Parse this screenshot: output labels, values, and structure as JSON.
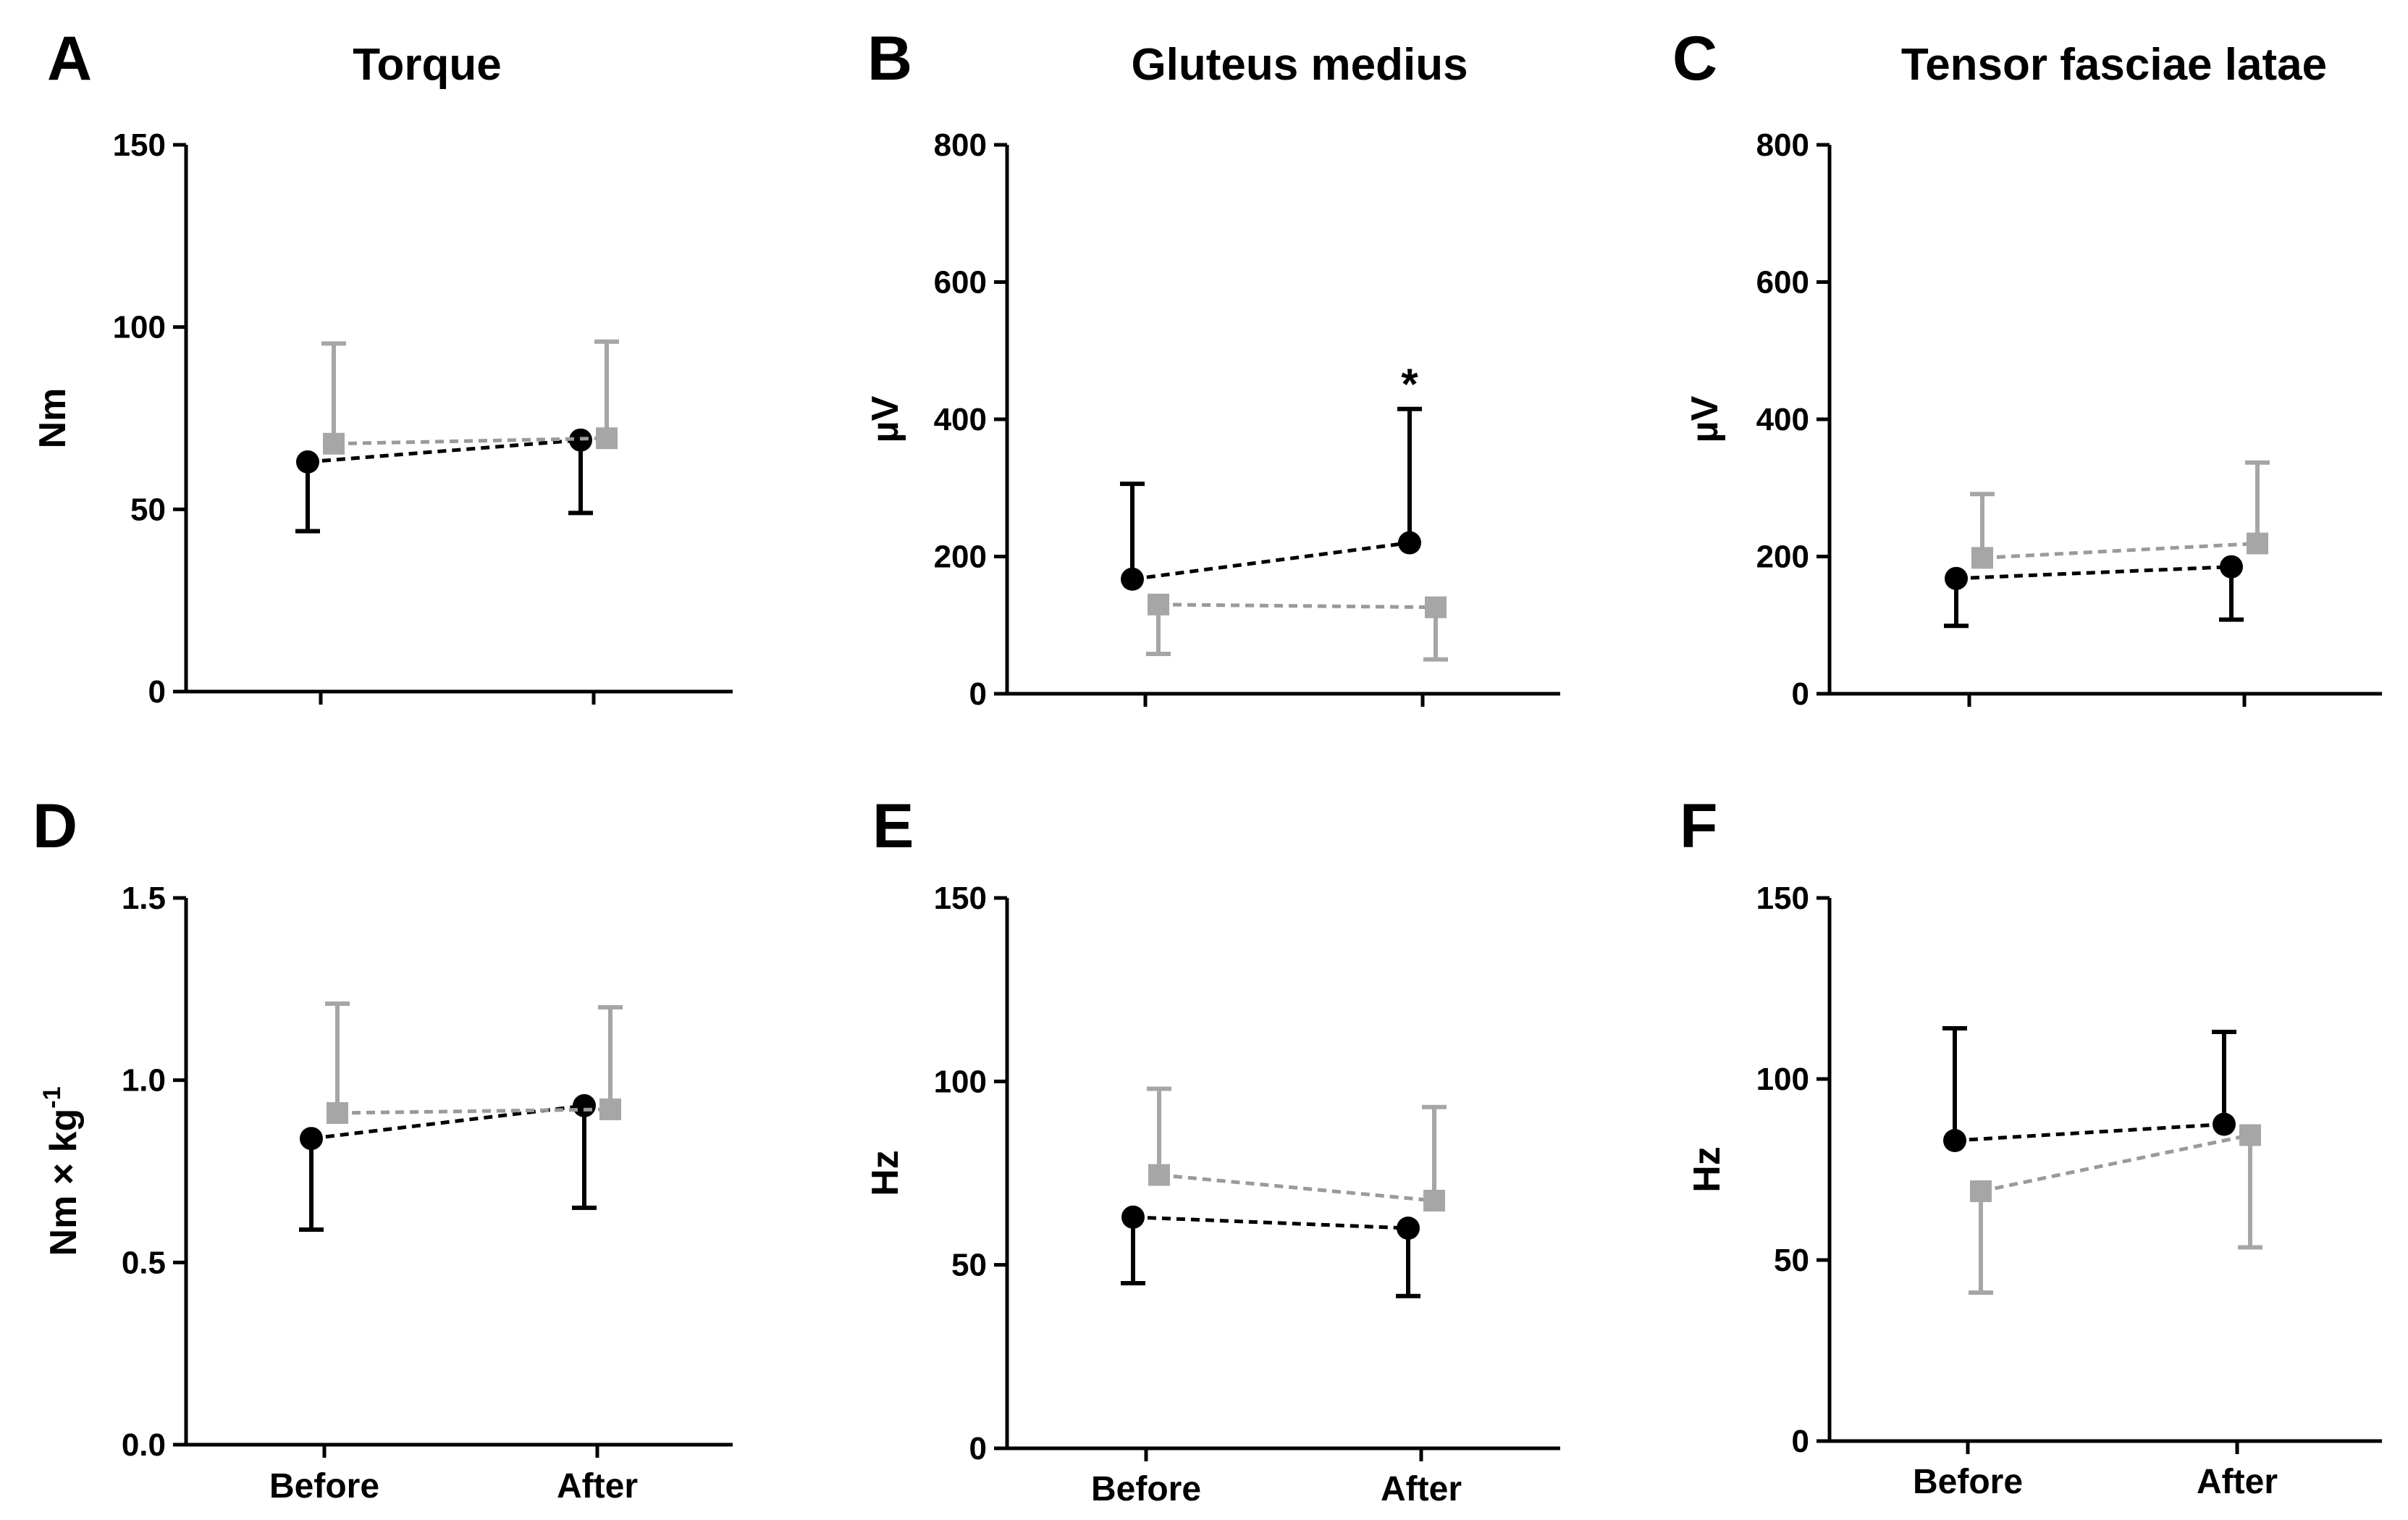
{
  "chart_data": [
    {
      "panel": "A",
      "title": "Torque",
      "type": "line",
      "ylabel": "Nm",
      "ylabel_sup": "",
      "ylim": [
        0,
        150
      ],
      "yticks": [
        {
          "v": 0,
          "t": "0"
        },
        {
          "v": 50,
          "t": "50"
        },
        {
          "v": 100,
          "t": "100"
        },
        {
          "v": 150,
          "t": "150"
        }
      ],
      "categories": [
        "Before",
        "After"
      ],
      "show_categories": false,
      "series": [
        {
          "color": "#000000",
          "marker": "circle",
          "values": [
            63,
            69
          ],
          "err": [
            [
              44,
              63
            ],
            [
              49,
              69
            ]
          ]
        },
        {
          "color": "#a6a6a6",
          "marker": "square",
          "values": [
            68,
            69.5
          ],
          "err": [
            [
              68,
              95.5
            ],
            [
              69.5,
              96
            ]
          ]
        }
      ],
      "annotations": []
    },
    {
      "panel": "B",
      "title": "Gluteus medius",
      "type": "line",
      "ylabel": "µV",
      "ylabel_sup": "",
      "ylim": [
        0,
        800
      ],
      "yticks": [
        {
          "v": 0,
          "t": "0"
        },
        {
          "v": 200,
          "t": "200"
        },
        {
          "v": 400,
          "t": "400"
        },
        {
          "v": 600,
          "t": "600"
        },
        {
          "v": 800,
          "t": "800"
        }
      ],
      "categories": [
        "Before",
        "After"
      ],
      "show_categories": false,
      "series": [
        {
          "color": "#000000",
          "marker": "circle",
          "values": [
            167,
            220
          ],
          "err": [
            [
              167,
              306
            ],
            [
              220,
              415
            ]
          ]
        },
        {
          "color": "#a6a6a6",
          "marker": "square",
          "values": [
            130,
            126
          ],
          "err": [
            [
              58,
              130
            ],
            [
              50,
              126
            ]
          ]
        }
      ],
      "annotations": [
        {
          "category_index": 1,
          "value": 415,
          "text": "*"
        }
      ]
    },
    {
      "panel": "C",
      "title": "Tensor fasciae latae",
      "type": "line",
      "ylabel": "µV",
      "ylabel_sup": "",
      "ylim": [
        0,
        800
      ],
      "yticks": [
        {
          "v": 0,
          "t": "0"
        },
        {
          "v": 200,
          "t": "200"
        },
        {
          "v": 400,
          "t": "400"
        },
        {
          "v": 600,
          "t": "600"
        },
        {
          "v": 800,
          "t": "800"
        }
      ],
      "categories": [
        "Before",
        "After"
      ],
      "show_categories": false,
      "series": [
        {
          "color": "#000000",
          "marker": "circle",
          "values": [
            168,
            185
          ],
          "err": [
            [
              99,
              168
            ],
            [
              108,
              185
            ]
          ]
        },
        {
          "color": "#a6a6a6",
          "marker": "square",
          "values": [
            198,
            219
          ],
          "err": [
            [
              198,
              291
            ],
            [
              219,
              337
            ]
          ]
        }
      ],
      "annotations": []
    },
    {
      "panel": "D",
      "title": "",
      "type": "line",
      "ylabel": "Nm × kg",
      "ylabel_sup": "-1",
      "ylim": [
        0,
        1.5
      ],
      "yticks": [
        {
          "v": 0,
          "t": "0.0"
        },
        {
          "v": 0.5,
          "t": "0.5"
        },
        {
          "v": 1,
          "t": "1.0"
        },
        {
          "v": 1.5,
          "t": "1.5"
        }
      ],
      "categories": [
        "Before",
        "After"
      ],
      "show_categories": true,
      "series": [
        {
          "color": "#000000",
          "marker": "circle",
          "values": [
            0.84,
            0.93
          ],
          "err": [
            [
              0.59,
              0.84
            ],
            [
              0.65,
              0.93
            ]
          ]
        },
        {
          "color": "#a6a6a6",
          "marker": "square",
          "values": [
            0.91,
            0.92
          ],
          "err": [
            [
              0.91,
              1.21
            ],
            [
              0.92,
              1.2
            ]
          ]
        }
      ],
      "annotations": []
    },
    {
      "panel": "E",
      "title": "",
      "type": "line",
      "ylabel": "Hz",
      "ylabel_sup": "",
      "ylim": [
        0,
        150
      ],
      "yticks": [
        {
          "v": 0,
          "t": "0"
        },
        {
          "v": 50,
          "t": "50"
        },
        {
          "v": 100,
          "t": "100"
        },
        {
          "v": 150,
          "t": "150"
        }
      ],
      "categories": [
        "Before",
        "After"
      ],
      "show_categories": true,
      "series": [
        {
          "color": "#000000",
          "marker": "circle",
          "values": [
            63,
            60
          ],
          "err": [
            [
              45,
              63
            ],
            [
              41.5,
              60
            ]
          ]
        },
        {
          "color": "#a6a6a6",
          "marker": "square",
          "values": [
            74.5,
            67.5
          ],
          "err": [
            [
              74.5,
              98
            ],
            [
              67.5,
              93
            ]
          ]
        }
      ],
      "annotations": []
    },
    {
      "panel": "F",
      "title": "",
      "type": "line",
      "ylabel": "Hz",
      "ylabel_sup": "",
      "ylim": [
        0,
        150
      ],
      "yticks": [
        {
          "v": 0,
          "t": "0"
        },
        {
          "v": 50,
          "t": "50"
        },
        {
          "v": 100,
          "t": "100"
        },
        {
          "v": 150,
          "t": "150"
        }
      ],
      "categories": [
        "Before",
        "After"
      ],
      "show_categories": true,
      "series": [
        {
          "color": "#000000",
          "marker": "circle",
          "values": [
            83,
            87.5
          ],
          "err": [
            [
              83,
              114
            ],
            [
              87.5,
              113
            ]
          ]
        },
        {
          "color": "#a6a6a6",
          "marker": "square",
          "values": [
            69,
            84.5
          ],
          "err": [
            [
              41,
              69
            ],
            [
              53.5,
              84.5
            ]
          ]
        }
      ],
      "annotations": []
    }
  ]
}
